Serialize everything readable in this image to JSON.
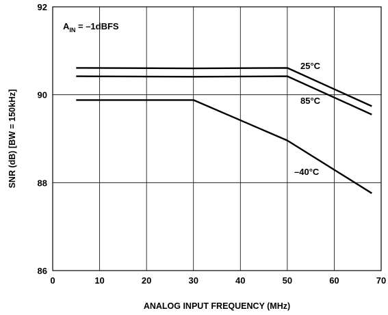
{
  "chart_data": {
    "type": "line",
    "title": "",
    "xlabel": "ANALOG INPUT FREQUENCY (MHz)",
    "ylabel": "SNR (dB) [BW = 150kHz]",
    "xlim": [
      0,
      70
    ],
    "ylim": [
      86,
      92
    ],
    "x_ticks": [
      0,
      10,
      20,
      30,
      40,
      50,
      60,
      70
    ],
    "y_ticks": [
      86,
      88,
      90,
      92
    ],
    "grid": true,
    "legend": "none",
    "annotation": {
      "main": "A",
      "sub": "IN",
      "rest": " = –1dBFS"
    },
    "series": [
      {
        "name": "25°C",
        "points": [
          [
            5,
            90.61
          ],
          [
            30,
            90.6
          ],
          [
            50,
            90.61
          ],
          [
            68,
            89.74
          ]
        ]
      },
      {
        "name": "85°C",
        "points": [
          [
            5,
            90.42
          ],
          [
            30,
            90.41
          ],
          [
            50,
            90.42
          ],
          [
            68,
            89.55
          ]
        ]
      },
      {
        "name": "–40°C",
        "points": [
          [
            5,
            89.88
          ],
          [
            30,
            89.88
          ],
          [
            50,
            88.96
          ],
          [
            68,
            87.76
          ]
        ]
      }
    ]
  }
}
